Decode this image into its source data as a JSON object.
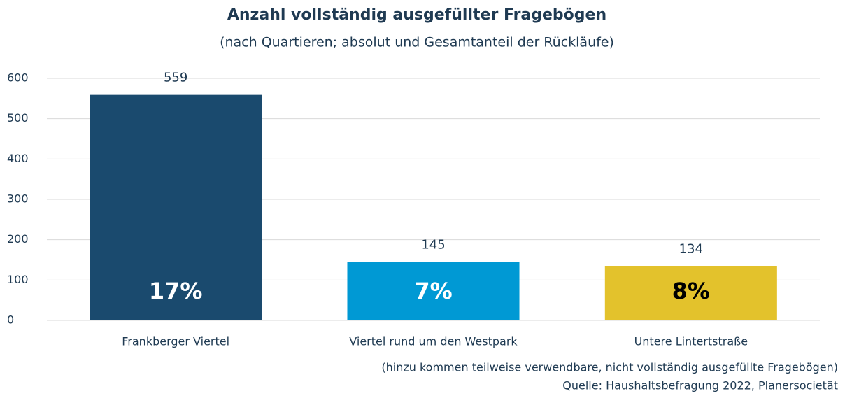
{
  "chart_data": {
    "type": "bar",
    "title": "Anzahl vollständig ausgefüllter Fragebögen",
    "subtitle": "(nach Quartieren; absolut und Gesamtanteil der Rückläufe)",
    "categories": [
      "Frankberger Viertel",
      "Viertel rund um den Westpark",
      "Untere Lintertstraße"
    ],
    "values": [
      559,
      145,
      134
    ],
    "colors": [
      "#1a4a6e",
      "#0099d4",
      "#e3c22c"
    ],
    "annotations": [
      "17%",
      "7%",
      "8%"
    ],
    "annotation_colors": [
      "#ffffff",
      "#ffffff",
      "#000000"
    ],
    "ylim": [
      0,
      600
    ],
    "yticks": [
      0,
      100,
      200,
      300,
      400,
      500,
      600
    ],
    "grid": true,
    "notes": [
      "(hinzu kommen teilweise verwendbare, nicht vollständig ausgefüllte Fragebögen)",
      "Quelle: Haushaltsbefragung 2022, Planersocietät"
    ]
  }
}
